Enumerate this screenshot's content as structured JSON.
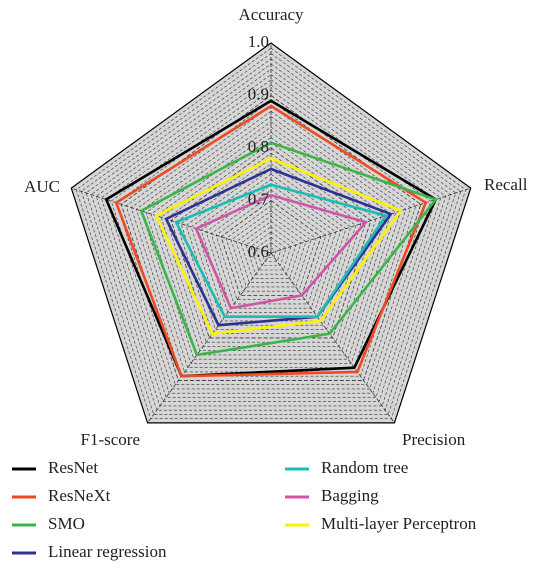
{
  "chart_data": {
    "type": "radar",
    "categories": [
      "Accuracy",
      "Recall",
      "Precision",
      "F1-score",
      "AUC"
    ],
    "rlim": [
      0.6,
      1.0
    ],
    "rticks": [
      0.6,
      0.7,
      0.8,
      0.9,
      {
        "value": 1.0,
        "label": "1.0"
      }
    ],
    "grid": true,
    "series": [
      {
        "name": "ResNet",
        "color": "#000000",
        "values": [
          0.89,
          0.93,
          0.87,
          0.89,
          0.93
        ]
      },
      {
        "name": "ResNeXt",
        "color": "#f04a23",
        "values": [
          0.88,
          0.91,
          0.88,
          0.89,
          0.91
        ]
      },
      {
        "name": "SMO",
        "color": "#3ab54a",
        "values": [
          0.81,
          0.93,
          0.79,
          0.84,
          0.86
        ]
      },
      {
        "name": "Linear regression",
        "color": "#2e3192",
        "values": [
          0.76,
          0.84,
          0.75,
          0.77,
          0.81
        ]
      },
      {
        "name": "Random tree",
        "color": "#1bbcb5",
        "values": [
          0.73,
          0.83,
          0.75,
          0.75,
          0.79
        ]
      },
      {
        "name": "Bagging",
        "color": "#d154a8",
        "values": [
          0.71,
          0.79,
          0.7,
          0.73,
          0.75
        ]
      },
      {
        "name": "Multi-layer Perceptron",
        "color": "#fff200",
        "values": [
          0.78,
          0.86,
          0.76,
          0.79,
          0.83
        ]
      }
    ]
  }
}
